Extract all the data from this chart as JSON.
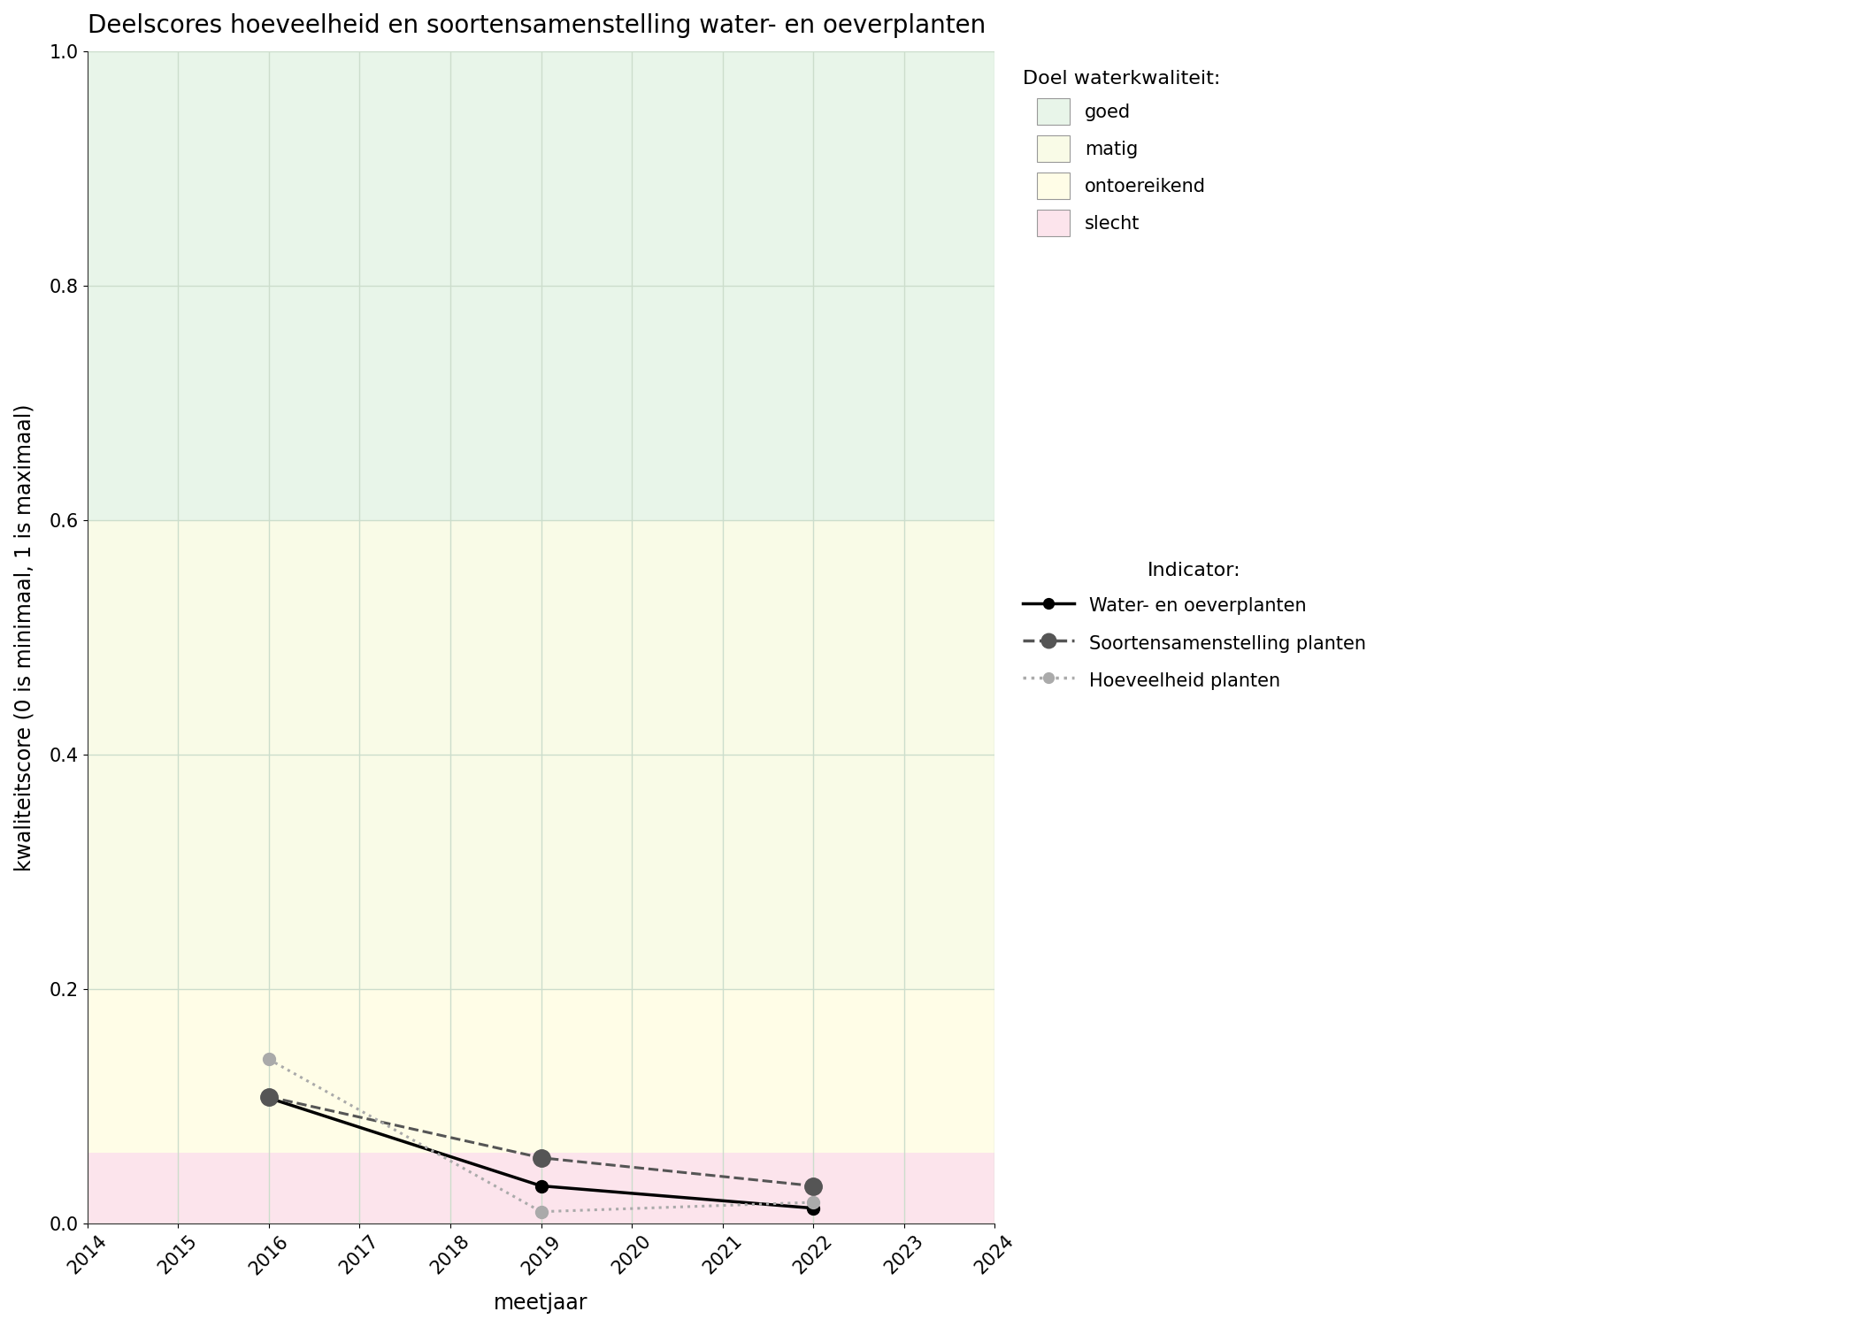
{
  "title": "Deelscores hoeveelheid en soortensamenstelling water- en oeverplanten",
  "xlabel": "meetjaar",
  "ylabel": "kwaliteitscore (0 is minimaal, 1 is maximaal)",
  "xlim": [
    2014,
    2024
  ],
  "ylim": [
    0.0,
    1.0
  ],
  "xticks": [
    2014,
    2015,
    2016,
    2017,
    2018,
    2019,
    2020,
    2021,
    2022,
    2023,
    2024
  ],
  "yticks": [
    0.0,
    0.2,
    0.4,
    0.6,
    0.8,
    1.0
  ],
  "bg_bands": [
    {
      "color": "#e8f5e9",
      "ymin": 0.6,
      "ymax": 1.0,
      "label": "goed"
    },
    {
      "color": "#f9fbe7",
      "ymin": 0.2,
      "ymax": 0.6,
      "label": "matig"
    },
    {
      "color": "#fffde7",
      "ymin": 0.06,
      "ymax": 0.2,
      "label": "ontoereikend"
    },
    {
      "color": "#fce4ec",
      "ymin": 0.0,
      "ymax": 0.06,
      "label": "slecht"
    }
  ],
  "lines": [
    {
      "key": "water_oeverplanten",
      "x": [
        2016,
        2019,
        2022
      ],
      "y": [
        0.107,
        0.032,
        0.013
      ],
      "color": "#000000",
      "linestyle": "solid",
      "linewidth": 2.5,
      "marker": "o",
      "markersize": 10,
      "label": "Water- en oeverplanten"
    },
    {
      "key": "soortensamenstelling",
      "x": [
        2016,
        2019,
        2022
      ],
      "y": [
        0.108,
        0.056,
        0.032
      ],
      "color": "#555555",
      "linestyle": "dashed",
      "linewidth": 2.2,
      "marker": "o",
      "markersize": 14,
      "label": "Soortensamenstelling planten"
    },
    {
      "key": "hoeveelheid",
      "x": [
        2016,
        2019,
        2022
      ],
      "y": [
        0.14,
        0.01,
        0.018
      ],
      "color": "#aaaaaa",
      "linestyle": "dotted",
      "linewidth": 2.2,
      "marker": "o",
      "markersize": 10,
      "label": "Hoeveelheid planten"
    }
  ],
  "legend_title_doel": "Doel waterkwaliteit:",
  "legend_title_indicator": "Indicator:",
  "figure_bg": "#ffffff",
  "axes_bg": "#ffffff",
  "grid_color": "#ccddcc",
  "title_fontsize": 20,
  "axis_label_fontsize": 17,
  "tick_fontsize": 15,
  "legend_fontsize": 15,
  "legend_title_fontsize": 16
}
